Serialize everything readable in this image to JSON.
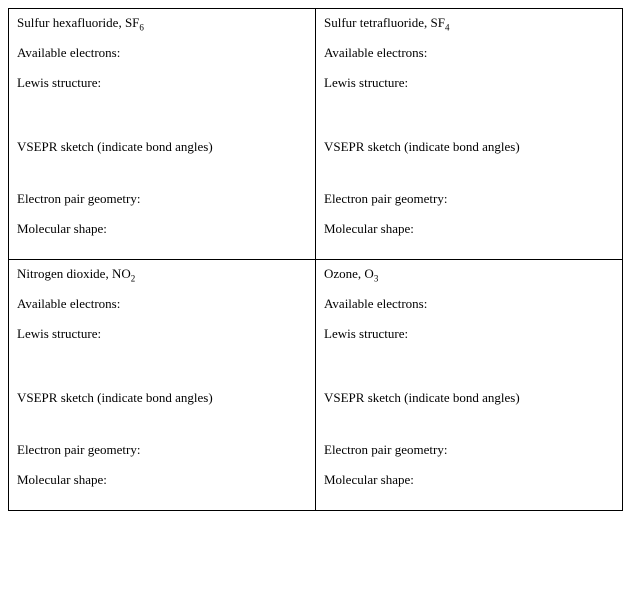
{
  "labels": {
    "available_electrons": "Available electrons:",
    "lewis_structure": "Lewis structure:",
    "vsepr_sketch": "VSEPR sketch (indicate bond angles)",
    "electron_pair_geometry": "Electron pair geometry:",
    "molecular_shape": "Molecular shape:"
  },
  "cells": [
    {
      "name_prefix": "Sulfur hexafluoride, SF",
      "subscript": "6"
    },
    {
      "name_prefix": "Sulfur tetrafluoride, SF",
      "subscript": "4"
    },
    {
      "name_prefix": "Nitrogen dioxide, NO",
      "subscript": "2"
    },
    {
      "name_prefix": "Ozone, O",
      "subscript": "3"
    }
  ],
  "style": {
    "font_family": "Times New Roman",
    "font_size_pt": 10,
    "border_color": "#000000",
    "background_color": "#ffffff",
    "text_color": "#000000"
  }
}
